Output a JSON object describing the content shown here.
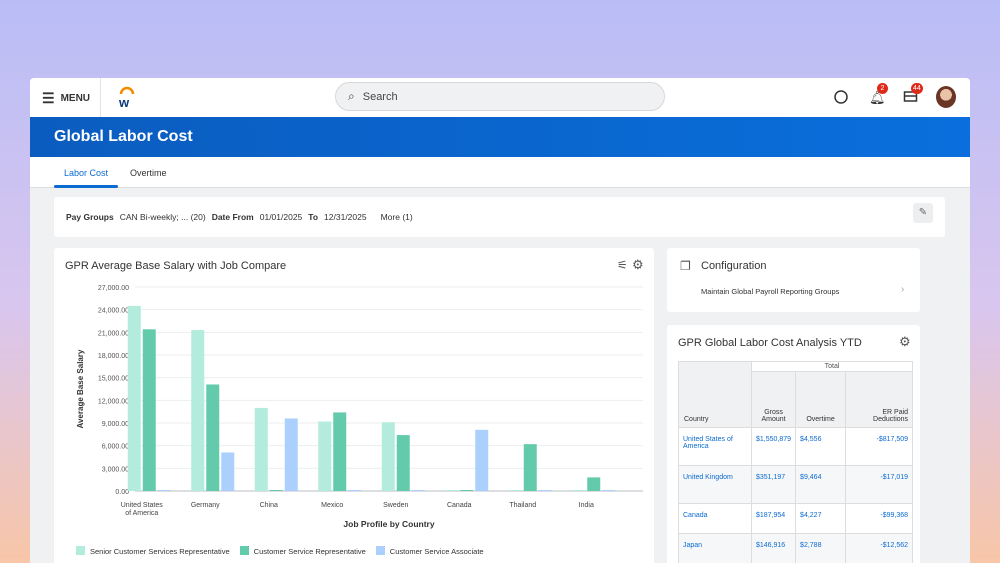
{
  "header": {
    "menu_label": "MENU",
    "search_placeholder": "Search",
    "notifications_count": "2",
    "inbox_count": "44"
  },
  "page": {
    "title": "Global Labor Cost"
  },
  "tabs": [
    {
      "label": "Labor Cost",
      "active": true
    },
    {
      "label": "Overtime",
      "active": false
    }
  ],
  "filters": {
    "pay_groups_label": "Pay Groups",
    "pay_groups_value": "CAN Bi-weekly; ... (20)",
    "date_from_label": "Date From",
    "date_from_value": "01/01/2025",
    "to_label": "To",
    "to_value": "12/31/2025",
    "more_label": "More (1)"
  },
  "configuration": {
    "title": "Configuration",
    "link": "Maintain Global Payroll Reporting Groups"
  },
  "analysis": {
    "title": "GPR Global Labor Cost Analysis YTD",
    "group_header": "Total",
    "columns": [
      "Country",
      "Gross Amount",
      "Overtime",
      "ER Paid Deductions"
    ],
    "rows": [
      [
        "United States of America",
        "$1,550,879",
        "$4,556",
        "-$817,509"
      ],
      [
        "United Kingdom",
        "$351,197",
        "$9,464",
        "-$17,019"
      ],
      [
        "Canada",
        "$187,954",
        "$4,227",
        "-$99,368"
      ],
      [
        "Japan",
        "$146,916",
        "$2,788",
        "-$12,562"
      ]
    ]
  },
  "chart_data": {
    "type": "bar",
    "title": "GPR Average Base Salary with Job Compare",
    "xlabel": "Job Profile by Country",
    "ylabel": "Average Base Salary",
    "ylim": [
      0,
      27000
    ],
    "yticks": [
      "0.00",
      "3,000.00",
      "6,000.00",
      "9,000.00",
      "12,000.00",
      "15,000.00",
      "18,000.00",
      "21,000.00",
      "24,000.00",
      "27,000.00"
    ],
    "categories": [
      "United States of America",
      "Germany",
      "China",
      "Mexico",
      "Sweden",
      "Canada",
      "Thailand",
      "India"
    ],
    "grid": true,
    "legend": "bottom",
    "series": [
      {
        "name": "Senior Customer Services Representative",
        "color": "#b3ecdc",
        "values": [
          24500,
          21300,
          11000,
          9200,
          9100,
          0,
          0,
          0
        ]
      },
      {
        "name": "Customer Service Representative",
        "color": "#63cbab",
        "values": [
          21400,
          14100,
          0,
          10400,
          7400,
          0,
          6200,
          1800
        ]
      },
      {
        "name": "Customer Service Associate",
        "color": "#abd0fd",
        "values": [
          0,
          5100,
          9600,
          0,
          0,
          8100,
          0,
          0
        ]
      }
    ]
  }
}
